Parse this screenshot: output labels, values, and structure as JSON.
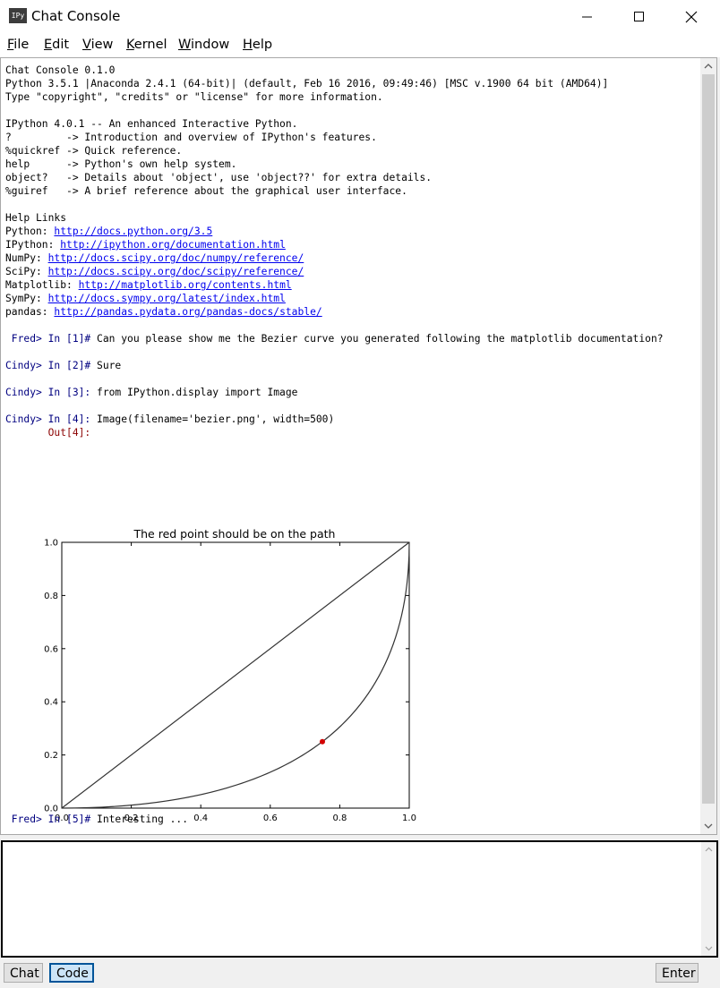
{
  "window": {
    "title": "Chat Console",
    "icon_label": "IPy"
  },
  "menu": {
    "items": [
      {
        "label": "File",
        "mnemonic": "F",
        "rest": "ile"
      },
      {
        "label": "Edit",
        "mnemonic": "E",
        "rest": "dit"
      },
      {
        "label": "View",
        "mnemonic": "V",
        "rest": "iew"
      },
      {
        "label": "Kernel",
        "mnemonic": "K",
        "rest": "ernel"
      },
      {
        "label": "Window",
        "mnemonic": "W",
        "rest": "indow"
      },
      {
        "label": "Help",
        "mnemonic": "H",
        "rest": "elp"
      }
    ]
  },
  "console": {
    "banner": [
      "Chat Console 0.1.0",
      "Python 3.5.1 |Anaconda 2.4.1 (64-bit)| (default, Feb 16 2016, 09:49:46) [MSC v.1900 64 bit (AMD64)]",
      "Type \"copyright\", \"credits\" or \"license\" for more information.",
      "",
      "IPython 4.0.1 -- An enhanced Interactive Python.",
      "?         -> Introduction and overview of IPython's features.",
      "%quickref -> Quick reference.",
      "help      -> Python's own help system.",
      "object?   -> Details about 'object', use 'object??' for extra details.",
      "%guiref   -> A brief reference about the graphical user interface.",
      "",
      "Help Links"
    ],
    "help_links": [
      {
        "label": "Python: ",
        "url": "http://docs.python.org/3.5"
      },
      {
        "label": "IPython: ",
        "url": "http://ipython.org/documentation.html"
      },
      {
        "label": "NumPy: ",
        "url": "http://docs.scipy.org/doc/numpy/reference/"
      },
      {
        "label": "SciPy: ",
        "url": "http://docs.scipy.org/doc/scipy/reference/"
      },
      {
        "label": "Matplotlib: ",
        "url": "http://matplotlib.org/contents.html"
      },
      {
        "label": "SymPy: ",
        "url": "http://docs.sympy.org/latest/index.html"
      },
      {
        "label": "pandas: ",
        "url": "http://pandas.pydata.org/pandas-docs/stable/"
      }
    ],
    "messages": [
      {
        "prompt": " Fred> In [1]#",
        "text": " Can you please show me the Bezier curve you generated following the matplotlib documentation?"
      },
      {
        "prompt": "Cindy> In [2]#",
        "text": " Sure"
      },
      {
        "prompt": "Cindy> In [3]:",
        "text": " from IPython.display import Image"
      },
      {
        "prompt": "Cindy> In [4]:",
        "text": " Image(filename='bezier.png', width=500)"
      }
    ],
    "out_prompt": "       Out[4]:",
    "last_message": {
      "prompt": " Fred> In [5]#",
      "text": " Interesting ..."
    }
  },
  "chart_data": {
    "type": "line",
    "title": "The red point should be on the path",
    "xlim": [
      0.0,
      1.0
    ],
    "ylim": [
      0.0,
      1.0
    ],
    "xticks": [
      "0.0",
      "0.2",
      "0.4",
      "0.6",
      "0.8",
      "1.0"
    ],
    "yticks": [
      "0.0",
      "0.2",
      "0.4",
      "0.6",
      "0.8",
      "1.0"
    ],
    "series": [
      {
        "kind": "straight-line",
        "x": [
          0.0,
          1.0
        ],
        "y": [
          0.0,
          1.0
        ],
        "color": "#333333"
      },
      {
        "kind": "quadratic-bezier",
        "control_points": [
          [
            0.0,
            0.0
          ],
          [
            1.0,
            0.0
          ],
          [
            1.0,
            1.0
          ]
        ],
        "color": "#333333"
      }
    ],
    "points": [
      {
        "x": 0.75,
        "y": 0.25,
        "color": "#d40000"
      }
    ],
    "grid": false
  },
  "buttons": {
    "chat": "Chat",
    "code": "Code",
    "enter": "Enter"
  }
}
